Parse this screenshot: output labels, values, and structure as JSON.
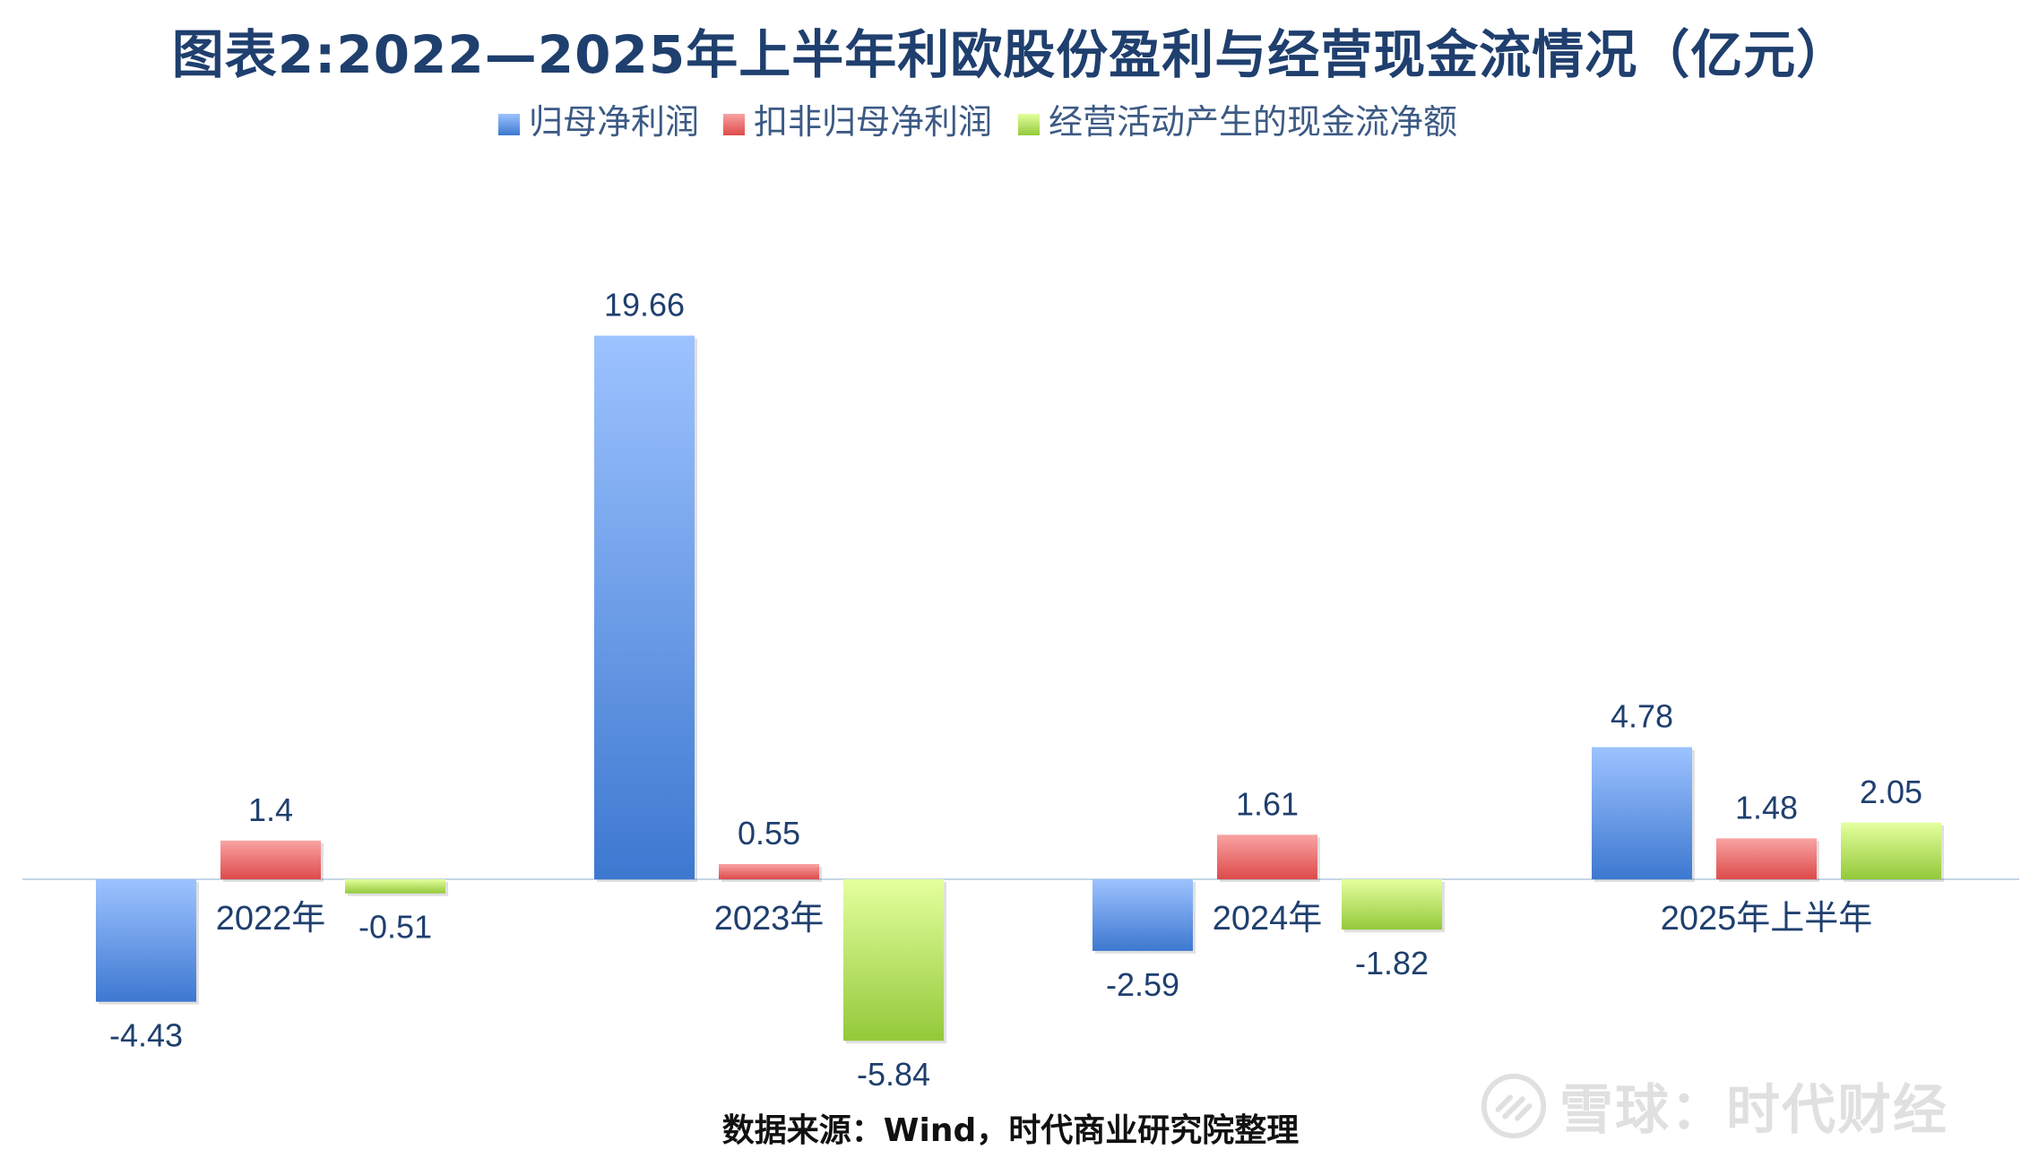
{
  "watermark": {
    "text": "雪球：时代财经",
    "icon": "xueqiu-logo-icon"
  },
  "source_note": "数据来源：Wind，时代商业研究院整理",
  "chart_data": {
    "type": "bar",
    "title": "图表2:2022—2025年上半年利欧股份盈利与经营现金流情况（亿元）",
    "categories": [
      "2022年",
      "2023年",
      "2024年",
      "2025年上半年"
    ],
    "series": [
      {
        "name": "归母净利润",
        "values": [
          -4.43,
          19.66,
          -2.59,
          4.78
        ],
        "labels": [
          "-4.43",
          "19.66",
          "-2.59",
          "4.78"
        ],
        "color_top": "#9dc3ff",
        "color_bottom": "#3d78d0"
      },
      {
        "name": "扣非归母净利润",
        "values": [
          1.4,
          0.55,
          1.61,
          1.48
        ],
        "labels": [
          "1.4",
          "0.55",
          "1.61",
          "1.48"
        ],
        "color_top": "#f9a3a3",
        "color_bottom": "#de4a4a"
      },
      {
        "name": "经营活动产生的现金流净额",
        "values": [
          -0.51,
          -5.84,
          -1.82,
          2.05
        ],
        "labels": [
          "-0.51",
          "-5.84",
          "-1.82",
          "2.05"
        ],
        "color_top": "#e4ff9e",
        "color_bottom": "#93c93a"
      }
    ],
    "xlabel": "",
    "ylabel": "",
    "grid": false,
    "legend": "top-center",
    "axis_color": "#c5d6e6",
    "label_color": "#1f3f6e"
  }
}
